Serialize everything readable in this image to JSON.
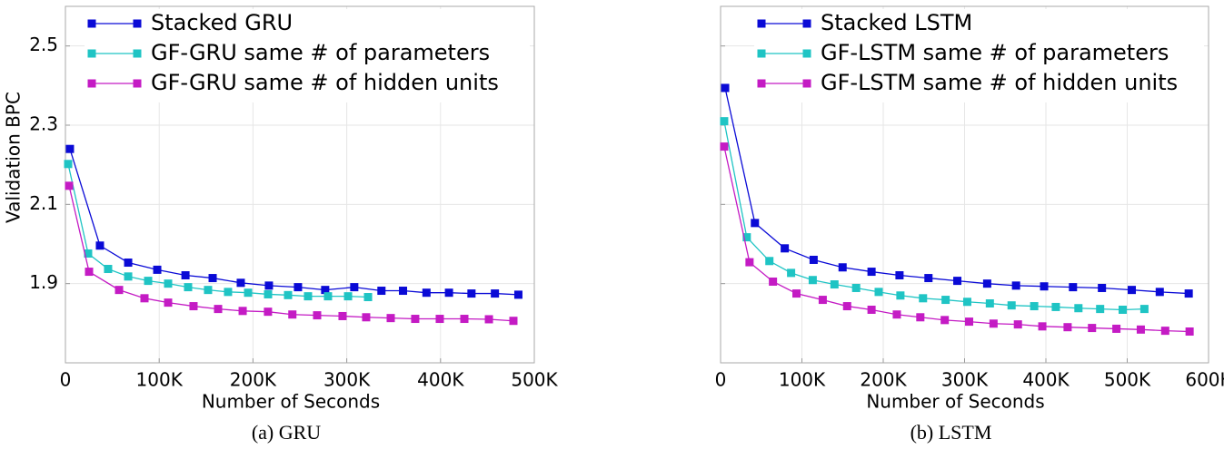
{
  "chart_data": [
    {
      "type": "line",
      "caption": "(a) GRU",
      "xlabel": "Number of Seconds",
      "ylabel": "Validation BPC",
      "xlim": [
        0,
        500000
      ],
      "ylim": [
        1.7,
        2.6
      ],
      "xticks": [
        0,
        {
          "value": 100000,
          "label": "100K"
        },
        {
          "value": 200000,
          "label": "200K"
        },
        {
          "value": 300000,
          "label": "300K"
        },
        {
          "value": 400000,
          "label": "400K"
        },
        {
          "value": 500000,
          "label": "500K"
        }
      ],
      "yticks": [
        1.9,
        2.1,
        2.3,
        2.5
      ],
      "ytick_labels": true,
      "grid": true,
      "legend": "upper right",
      "series": [
        {
          "name": "Stacked GRU",
          "color": "#0a0ad6",
          "x": [
            4800,
            36800,
            66900,
            97900,
            128000,
            157000,
            187000,
            217000,
            248000,
            277000,
            308000,
            337000,
            360000,
            385000,
            409000,
            433000,
            458000,
            483000
          ],
          "values": [
            2.24,
            1.996,
            1.953,
            1.935,
            1.921,
            1.914,
            1.902,
            1.895,
            1.891,
            1.884,
            1.891,
            1.882,
            1.882,
            1.877,
            1.877,
            1.875,
            1.875,
            1.872
          ]
        },
        {
          "name": "GF-GRU same # of parameters",
          "color": "#1fc4c4",
          "x": [
            2900,
            24200,
            45500,
            66900,
            88200,
            109500,
            130800,
            152100,
            173400,
            194800,
            216100,
            237400,
            258700,
            280000,
            301400,
            322700
          ],
          "values": [
            2.202,
            1.976,
            1.937,
            1.918,
            1.907,
            1.9,
            1.891,
            1.884,
            1.879,
            1.877,
            1.873,
            1.871,
            1.868,
            1.868,
            1.868,
            1.866
          ]
        },
        {
          "name": "GF-GRU same # of hidden units",
          "color": "#c41bc4",
          "x": [
            3900,
            25200,
            57200,
            84300,
            109500,
            136600,
            162800,
            189000,
            216000,
            242000,
            268400,
            295500,
            320700,
            346900,
            373000,
            399200,
            425400,
            451600,
            477700
          ],
          "values": [
            2.147,
            1.93,
            1.884,
            1.863,
            1.852,
            1.843,
            1.836,
            1.831,
            1.829,
            1.822,
            1.82,
            1.818,
            1.815,
            1.813,
            1.811,
            1.811,
            1.811,
            1.81,
            1.806
          ]
        }
      ]
    },
    {
      "type": "line",
      "caption": "(b) LSTM",
      "xlabel": "Number of Seconds",
      "xlim": [
        0,
        600000
      ],
      "ylim": [
        1.7,
        2.6
      ],
      "xticks": [
        0,
        {
          "value": 100000,
          "label": "100K"
        },
        {
          "value": 200000,
          "label": "200K"
        },
        {
          "value": 300000,
          "label": "300K"
        },
        {
          "value": 400000,
          "label": "400K"
        },
        {
          "value": 500000,
          "label": "500K"
        },
        {
          "value": 600000,
          "label": "600K"
        }
      ],
      "yticks": [
        1.9,
        2.1,
        2.3,
        2.5
      ],
      "ytick_labels": false,
      "grid": true,
      "legend": "upper right",
      "series": [
        {
          "name": "Stacked LSTM",
          "color": "#0a0ad6",
          "x": [
            5600,
            42200,
            78900,
            114400,
            150000,
            185600,
            220000,
            255600,
            291100,
            327800,
            363300,
            397800,
            433300,
            468900,
            505600,
            540000,
            575600
          ],
          "values": [
            2.394,
            2.053,
            1.989,
            1.96,
            1.941,
            1.93,
            1.921,
            1.914,
            1.907,
            1.9,
            1.895,
            1.893,
            1.891,
            1.889,
            1.884,
            1.879,
            1.875
          ]
        },
        {
          "name": "GF-LSTM same # of parameters",
          "color": "#1fc4c4",
          "x": [
            4400,
            32200,
            60000,
            86700,
            113300,
            140000,
            166700,
            194400,
            221100,
            248900,
            276700,
            303300,
            331100,
            357800,
            385600,
            412200,
            440000,
            466700,
            494400,
            521100
          ],
          "values": [
            2.31,
            2.017,
            1.957,
            1.927,
            1.909,
            1.898,
            1.889,
            1.879,
            1.87,
            1.863,
            1.859,
            1.854,
            1.85,
            1.845,
            1.843,
            1.841,
            1.838,
            1.836,
            1.834,
            1.836
          ]
        },
        {
          "name": "GF-LSTM same # of hidden units",
          "color": "#c41bc4",
          "x": [
            4400,
            35600,
            64400,
            93300,
            125600,
            155600,
            185600,
            216700,
            245600,
            275600,
            305600,
            335600,
            365600,
            395600,
            426700,
            456700,
            486700,
            516700,
            546700,
            576700
          ],
          "values": [
            2.246,
            1.954,
            1.905,
            1.875,
            1.859,
            1.843,
            1.834,
            1.822,
            1.815,
            1.808,
            1.804,
            1.799,
            1.797,
            1.792,
            1.79,
            1.788,
            1.786,
            1.784,
            1.781,
            1.779
          ]
        }
      ]
    }
  ]
}
